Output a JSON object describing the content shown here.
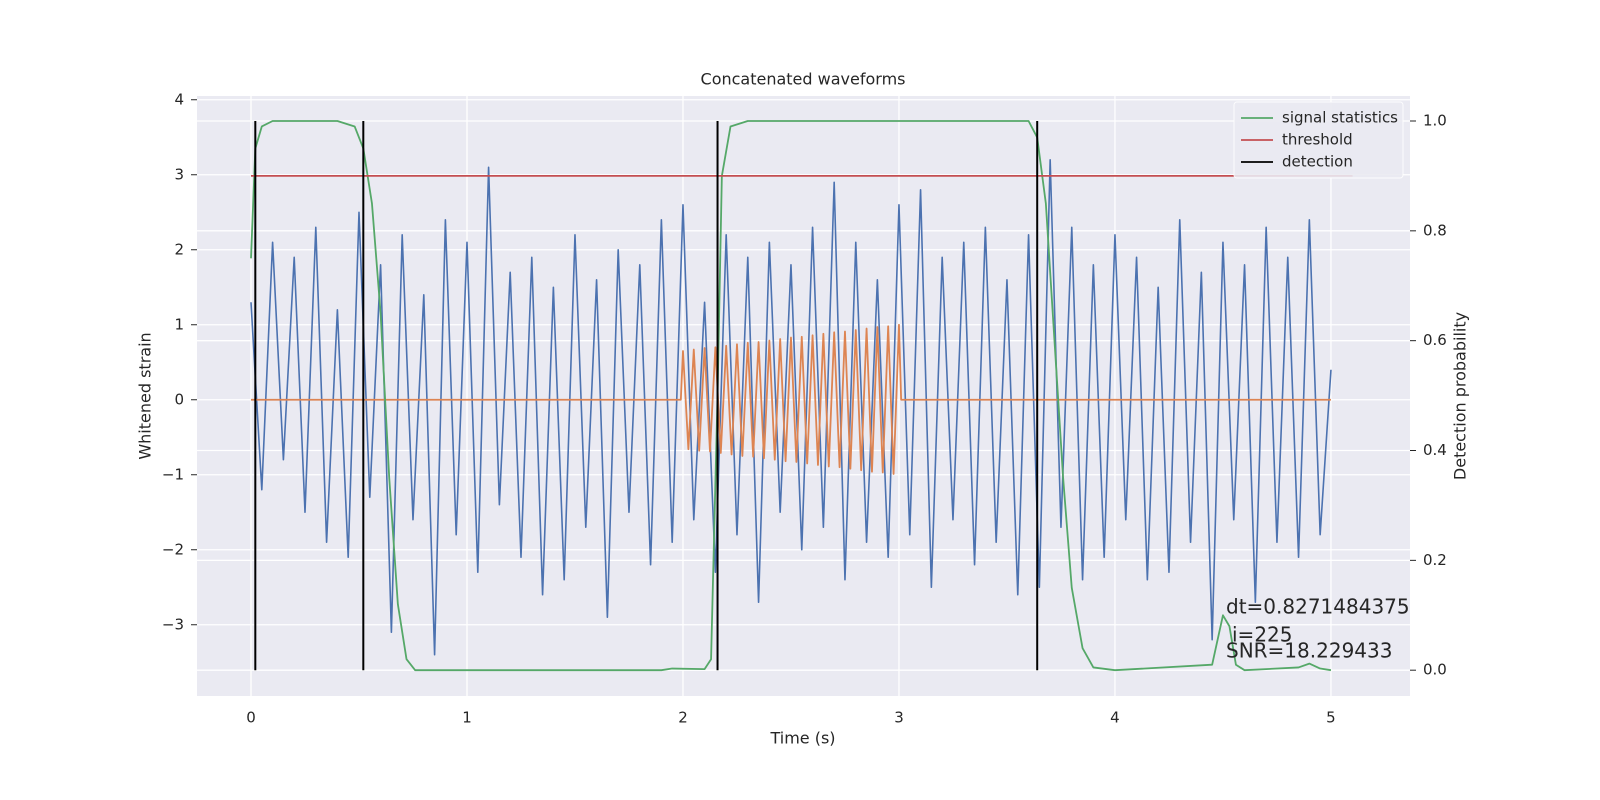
{
  "chart_data": {
    "type": "line",
    "title": "Concatenated waveforms",
    "xlabel": "Time (s)",
    "ylabel": "Whitened strain",
    "y2label": "Detection probability",
    "xlim": [
      -0.25,
      5.366
    ],
    "ylim": [
      -3.95,
      4.05
    ],
    "y2lim": [
      -0.047,
      1.0455
    ],
    "xticks": [
      0,
      1,
      2,
      3,
      4,
      5
    ],
    "yticks": [
      {
        "value": -3,
        "label": "−3"
      },
      {
        "value": -2,
        "label": "−2"
      },
      {
        "value": -1,
        "label": "−1"
      },
      0,
      1,
      2,
      3,
      4
    ],
    "y2ticks": [
      {
        "value": 0,
        "label": "0.0"
      },
      {
        "value": 0.2,
        "label": "0.2"
      },
      {
        "value": 0.4,
        "label": "0.4"
      },
      {
        "value": 0.6,
        "label": "0.6"
      },
      {
        "value": 0.8,
        "label": "0.8"
      },
      {
        "value": 1,
        "label": "1.0"
      }
    ],
    "grid": true,
    "legend": "upper right",
    "series": [
      {
        "color": "#4c72b0",
        "x": [
          0,
          0.05,
          0.1,
          0.15,
          0.2,
          0.25,
          0.3,
          0.35,
          0.4,
          0.45,
          0.5,
          0.55,
          0.6,
          0.65,
          0.7,
          0.75,
          0.8,
          0.85,
          0.9,
          0.95,
          1,
          1.05,
          1.1,
          1.15,
          1.2,
          1.25,
          1.3,
          1.35,
          1.4,
          1.45,
          1.5,
          1.55,
          1.6,
          1.65,
          1.7,
          1.75,
          1.8,
          1.85,
          1.9,
          1.95,
          2,
          2.05,
          2.1,
          2.15,
          2.2,
          2.25,
          2.3,
          2.35,
          2.4,
          2.45,
          2.5,
          2.55,
          2.6,
          2.65,
          2.7,
          2.75,
          2.8,
          2.85,
          2.9,
          2.95,
          3,
          3.05,
          3.1,
          3.15,
          3.2,
          3.25,
          3.3,
          3.35,
          3.4,
          3.45,
          3.5,
          3.55,
          3.6,
          3.65,
          3.7,
          3.75,
          3.8,
          3.85,
          3.9,
          3.95,
          4,
          4.05,
          4.1,
          4.15,
          4.2,
          4.25,
          4.3,
          4.35,
          4.4,
          4.45,
          4.5,
          4.55,
          4.6,
          4.65,
          4.7,
          4.75,
          4.8,
          4.85,
          4.9,
          4.95,
          5
        ],
        "values": [
          1.3,
          -1.2,
          2.1,
          -0.8,
          1.9,
          -1.5,
          2.3,
          -1.9,
          1.2,
          -2.1,
          2.5,
          -1.3,
          1.8,
          -3.1,
          2.2,
          -1.6,
          1.4,
          -3.4,
          2.4,
          -1.8,
          2.1,
          -2.3,
          3.1,
          -1.4,
          1.7,
          -2.1,
          1.9,
          -2.6,
          1.5,
          -2.4,
          2.2,
          -1.7,
          1.6,
          -2.9,
          2.0,
          -1.5,
          1.8,
          -2.2,
          2.4,
          -1.9,
          2.6,
          -1.6,
          1.3,
          -2.3,
          2.2,
          -1.8,
          1.9,
          -2.7,
          2.1,
          -1.5,
          1.8,
          -2.0,
          2.3,
          -1.7,
          2.9,
          -2.4,
          2.1,
          -1.9,
          1.6,
          -2.1,
          2.6,
          -1.8,
          2.8,
          -2.5,
          1.9,
          -1.6,
          2.1,
          -2.2,
          2.3,
          -1.9,
          1.6,
          -2.6,
          2.2,
          -2.5,
          3.2,
          -1.7,
          2.3,
          -2.4,
          1.8,
          -2.1,
          2.2,
          -1.6,
          1.9,
          -2.4,
          1.5,
          -2.3,
          2.4,
          -1.9,
          1.7,
          -3.2,
          2.1,
          -1.6,
          1.8,
          -2.7,
          2.3,
          -1.9,
          1.9,
          -2.1,
          2.4,
          -1.8,
          0.4
        ]
      },
      {
        "color": "#dd8452",
        "x": [
          0,
          1.99,
          2,
          2.025,
          2.05,
          2.075,
          2.1,
          2.125,
          2.15,
          2.175,
          2.2,
          2.225,
          2.25,
          2.275,
          2.3,
          2.325,
          2.35,
          2.375,
          2.4,
          2.425,
          2.45,
          2.475,
          2.5,
          2.525,
          2.55,
          2.575,
          2.6,
          2.625,
          2.65,
          2.675,
          2.7,
          2.725,
          2.75,
          2.775,
          2.8,
          2.825,
          2.85,
          2.875,
          2.9,
          2.925,
          2.95,
          2.975,
          3,
          3.01,
          5
        ],
        "values": [
          0,
          0,
          0.65,
          -0.66,
          0.67,
          -0.68,
          0.69,
          -0.69,
          0.7,
          -0.71,
          0.72,
          -0.73,
          0.74,
          -0.75,
          0.76,
          -0.76,
          0.77,
          -0.78,
          0.79,
          -0.8,
          0.81,
          -0.82,
          0.83,
          -0.83,
          0.84,
          -0.85,
          0.86,
          -0.87,
          0.88,
          -0.89,
          0.9,
          -0.9,
          0.91,
          -0.92,
          0.93,
          -0.94,
          0.95,
          -0.96,
          0.97,
          -0.97,
          0.98,
          -0.99,
          1.0,
          0,
          0
        ]
      },
      {
        "name": "signal statistics",
        "color": "#55a868",
        "axis": "y2",
        "x": [
          0,
          0.02,
          0.05,
          0.1,
          0.4,
          0.48,
          0.52,
          0.56,
          0.6,
          0.64,
          0.68,
          0.72,
          0.76,
          1.9,
          1.95,
          2.1,
          2.13,
          2.16,
          2.18,
          2.22,
          2.3,
          3.6,
          3.64,
          3.68,
          3.72,
          3.76,
          3.8,
          3.85,
          3.9,
          4,
          4.45,
          4.5,
          4.53,
          4.56,
          4.6,
          4.85,
          4.9,
          4.95,
          5
        ],
        "values": [
          0.75,
          0.95,
          0.99,
          1,
          1,
          0.99,
          0.95,
          0.85,
          0.65,
          0.35,
          0.12,
          0.02,
          0,
          0,
          0.003,
          0.002,
          0.02,
          0.5,
          0.9,
          0.99,
          1,
          1,
          0.97,
          0.85,
          0.6,
          0.35,
          0.15,
          0.04,
          0.005,
          0,
          0.01,
          0.1,
          0.08,
          0.01,
          0,
          0.005,
          0.012,
          0.003,
          0
        ]
      },
      {
        "name": "threshold",
        "color": "#c44e52",
        "axis": "y2",
        "x": [
          0,
          5.1
        ],
        "values": [
          0.9,
          0.9
        ]
      },
      {
        "name": "detection",
        "color": "#000000",
        "axis": "y2",
        "kind": "vlines",
        "x": [
          0.02,
          0.52,
          2.16,
          3.64
        ],
        "ymin": 0,
        "ymax": 1
      }
    ],
    "annotations": [
      "dt=0.8271484375",
      "i=225",
      "SNR=18.229433"
    ]
  }
}
